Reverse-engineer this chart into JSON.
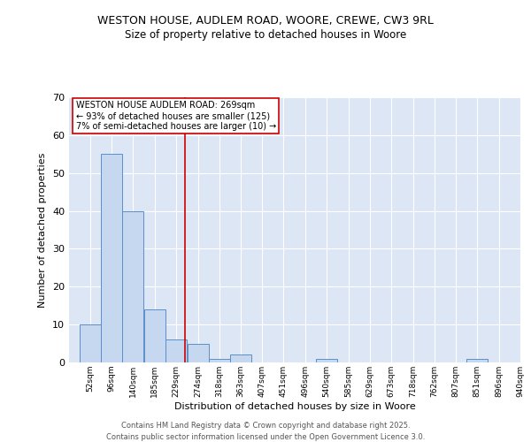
{
  "title1": "WESTON HOUSE, AUDLEM ROAD, WOORE, CREWE, CW3 9RL",
  "title2": "Size of property relative to detached houses in Woore",
  "xlabel": "Distribution of detached houses by size in Woore",
  "ylabel": "Number of detached properties",
  "bar_edges": [
    52,
    96,
    140,
    185,
    229,
    274,
    318,
    363,
    407,
    451,
    496,
    540,
    585,
    629,
    673,
    718,
    762,
    807,
    851,
    896,
    940
  ],
  "bar_heights": [
    10,
    55,
    40,
    14,
    6,
    5,
    1,
    2,
    0,
    0,
    0,
    1,
    0,
    0,
    0,
    0,
    0,
    0,
    1,
    0,
    0
  ],
  "bar_color": "#c5d8f0",
  "bar_edge_color": "#5b8fca",
  "bar_linewidth": 0.7,
  "vline_x": 269,
  "vline_color": "#cc0000",
  "vline_linewidth": 1.2,
  "annotation_lines": [
    "WESTON HOUSE AUDLEM ROAD: 269sqm",
    "← 93% of detached houses are smaller (125)",
    "7% of semi-detached houses are larger (10) →"
  ],
  "annotation_box_color": "#ffffff",
  "annotation_box_edge": "#cc0000",
  "ylim": [
    0,
    70
  ],
  "yticks": [
    0,
    10,
    20,
    30,
    40,
    50,
    60,
    70
  ],
  "bg_color": "#dce6f5",
  "footer1": "Contains HM Land Registry data © Crown copyright and database right 2025.",
  "footer2": "Contains public sector information licensed under the Open Government Licence 3.0."
}
